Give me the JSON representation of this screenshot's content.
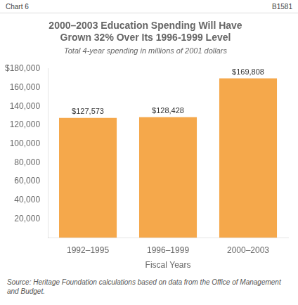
{
  "chart_data": {
    "type": "bar",
    "title": "2000–2003 Education Spending Will Have\nGrown 32% Over Its 1996-1999 Level",
    "subtitle": "Total 4-year spending in millions of 2001 dollars",
    "xlabel": "Fiscal Years",
    "categories": [
      "1992–1995",
      "1996–1999",
      "2000–2003"
    ],
    "values": [
      127573,
      128428,
      169808
    ],
    "value_labels": [
      "$127,573",
      "$128,428",
      "$169,808"
    ],
    "data_labels": true,
    "color": "#F5A84B",
    "ylim": [
      0,
      180000
    ],
    "yticks": [
      {
        "value": 20000,
        "label": "20,000"
      },
      {
        "value": 40000,
        "label": "40,000"
      },
      {
        "value": 60000,
        "label": "60,000"
      },
      {
        "value": 80000,
        "label": "80,000"
      },
      {
        "value": 100000,
        "label": "100,000"
      },
      {
        "value": 120000,
        "label": "120,000"
      },
      {
        "value": 140000,
        "label": "140,000"
      },
      {
        "value": 160000,
        "label": "160,000"
      },
      {
        "value": 180000,
        "label": "$180,000"
      }
    ],
    "grid": false,
    "annotations": [
      "Chart 6",
      "B1581",
      "Source: Heritage Foundation calculations based on data from the Office of Management and Budget."
    ]
  }
}
